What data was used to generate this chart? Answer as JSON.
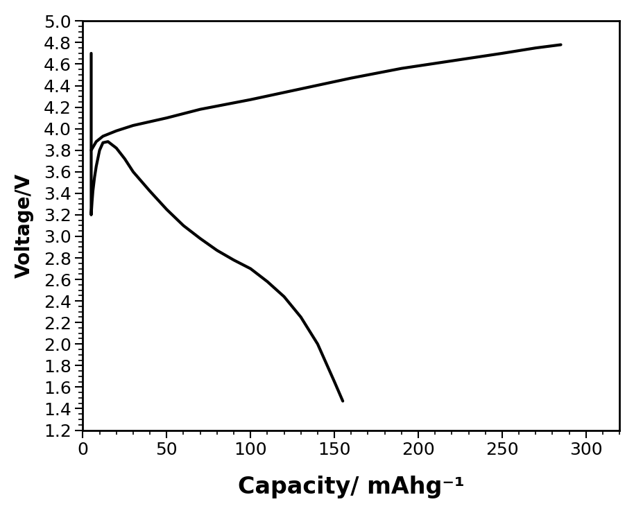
{
  "title": "",
  "xlabel": "Capacity/ mAhg⁻¹",
  "ylabel": "Voltage/V",
  "xlim": [
    0,
    320
  ],
  "ylim": [
    1.2,
    5.0
  ],
  "xticks": [
    0,
    50,
    100,
    150,
    200,
    250,
    300
  ],
  "yticks": [
    1.2,
    1.4,
    1.6,
    1.8,
    2.0,
    2.2,
    2.4,
    2.6,
    2.8,
    3.0,
    3.2,
    3.4,
    3.6,
    3.8,
    4.0,
    4.2,
    4.4,
    4.6,
    4.8,
    5.0
  ],
  "line_color": "#000000",
  "line_width": 3.0,
  "background_color": "#ffffff",
  "discharge_x": [
    5,
    5,
    5.2,
    5.5,
    6,
    7,
    8,
    10,
    12,
    15,
    20,
    25,
    30,
    40,
    50,
    60,
    70,
    80,
    90,
    100,
    110,
    120,
    130,
    140,
    150,
    155
  ],
  "discharge_y": [
    4.7,
    3.2,
    3.25,
    3.32,
    3.42,
    3.55,
    3.65,
    3.8,
    3.87,
    3.88,
    3.82,
    3.72,
    3.6,
    3.42,
    3.25,
    3.1,
    2.98,
    2.87,
    2.78,
    2.7,
    2.58,
    2.44,
    2.25,
    2.0,
    1.65,
    1.47
  ],
  "charge_x": [
    5,
    8,
    12,
    20,
    30,
    50,
    70,
    100,
    130,
    160,
    190,
    220,
    250,
    270,
    285
  ],
  "charge_y": [
    3.8,
    3.88,
    3.93,
    3.98,
    4.03,
    4.1,
    4.18,
    4.27,
    4.37,
    4.47,
    4.56,
    4.63,
    4.7,
    4.75,
    4.78
  ],
  "xlabel_fontsize": 24,
  "ylabel_fontsize": 20,
  "tick_fontsize": 18,
  "xlabel_labelpad": 18,
  "ylabel_labelpad": 10
}
